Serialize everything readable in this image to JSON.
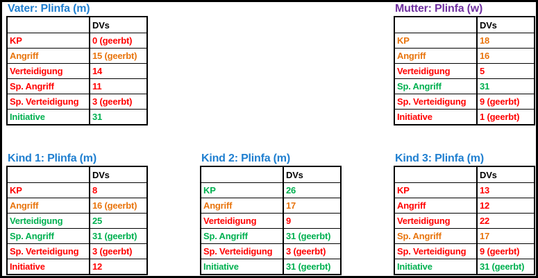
{
  "value_column_header": "DVs",
  "colors": {
    "red": "#FF0000",
    "orange": "#E8740D",
    "green": "#00B050",
    "title_blue": "#1F7FD0",
    "title_purple": "#7030A0",
    "border_black": "#000000",
    "background_white": "#FFFFFF"
  },
  "tables": [
    {
      "title": "Vater: Plinfa (m)",
      "title_color": "#1F7FD0",
      "rows": [
        {
          "label": "KP",
          "value": "0 (geerbt)",
          "color": "#FF0000"
        },
        {
          "label": "Angriff",
          "value": "15 (geerbt)",
          "color": "#E8740D"
        },
        {
          "label": "Verteidigung",
          "value": "14",
          "color": "#FF0000"
        },
        {
          "label": "Sp. Angriff",
          "value": "11",
          "color": "#FF0000"
        },
        {
          "label": "Sp. Verteidigung",
          "value": "3 (geerbt)",
          "color": "#FF0000"
        },
        {
          "label": "Initiative",
          "value": "31",
          "color": "#00B050"
        }
      ]
    },
    {
      "title": "Mutter: Plinfa (w)",
      "title_color": "#7030A0",
      "rows": [
        {
          "label": "KP",
          "value": "18",
          "color": "#E8740D"
        },
        {
          "label": "Angriff",
          "value": "16",
          "color": "#E8740D"
        },
        {
          "label": "Verteidigung",
          "value": "5",
          "color": "#FF0000"
        },
        {
          "label": "Sp. Angriff",
          "value": "31",
          "color": "#00B050"
        },
        {
          "label": "Sp. Verteidigung",
          "value": "9 (geerbt)",
          "color": "#FF0000"
        },
        {
          "label": "Initiative",
          "value": "1 (geerbt)",
          "color": "#FF0000"
        }
      ]
    },
    {
      "title": "Kind 1: Plinfa (m)",
      "title_color": "#1F7FD0",
      "rows": [
        {
          "label": "KP",
          "value": "8",
          "color": "#FF0000"
        },
        {
          "label": "Angriff",
          "value": "16 (geerbt)",
          "color": "#E8740D"
        },
        {
          "label": "Verteidigung",
          "value": "25",
          "color": "#00B050"
        },
        {
          "label": "Sp. Angriff",
          "value": "31 (geerbt)",
          "color": "#00B050"
        },
        {
          "label": "Sp. Verteidigung",
          "value": "3 (geerbt)",
          "color": "#FF0000"
        },
        {
          "label": "Initiative",
          "value": "12",
          "color": "#FF0000"
        }
      ]
    },
    {
      "title": "Kind 2: Plinfa (m)",
      "title_color": "#1F7FD0",
      "rows": [
        {
          "label": "KP",
          "value": "26",
          "color": "#00B050"
        },
        {
          "label": "Angriff",
          "value": "17",
          "color": "#E8740D"
        },
        {
          "label": "Verteidigung",
          "value": "9",
          "color": "#FF0000"
        },
        {
          "label": "Sp. Angriff",
          "value": "31 (geerbt)",
          "color": "#00B050"
        },
        {
          "label": "Sp. Verteidigung",
          "value": "3 (geerbt)",
          "color": "#FF0000"
        },
        {
          "label": "Initiative",
          "value": "31 (geerbt)",
          "color": "#00B050"
        }
      ]
    },
    {
      "title": "Kind 3: Plinfa (m)",
      "title_color": "#1F7FD0",
      "rows": [
        {
          "label": "KP",
          "value": "13",
          "color": "#FF0000"
        },
        {
          "label": "Angriff",
          "value": "12",
          "color": "#FF0000"
        },
        {
          "label": "Verteidigung",
          "value": "22",
          "color": "#FF0000"
        },
        {
          "label": "Sp. Angriff",
          "value": "17",
          "color": "#E8740D"
        },
        {
          "label": "Sp. Verteidigung",
          "value": "9 (geerbt)",
          "color": "#FF0000"
        },
        {
          "label": "Initiative",
          "value": "31 (geerbt)",
          "color": "#00B050"
        }
      ]
    }
  ]
}
